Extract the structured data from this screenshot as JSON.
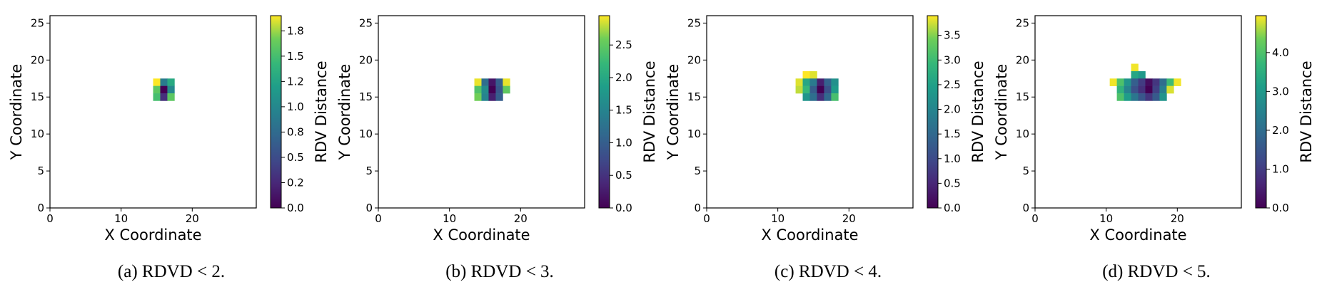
{
  "chart_data": [
    {
      "type": "heatmap",
      "caption": "(a) RDVD < 2.",
      "xlabel": "X Coordinate",
      "ylabel": "Y Coordinate",
      "xticks": [
        0,
        10,
        20
      ],
      "yticks": [
        0,
        5,
        10,
        15,
        20,
        25
      ],
      "xlim": [
        0,
        29
      ],
      "ylim": [
        0,
        26
      ],
      "colorbar_label": "RDV Distance",
      "colorbar_range": [
        0,
        1.9
      ],
      "colorbar_ticks": [
        "0.0",
        "0.2",
        "0.5",
        "0.8",
        "1.0",
        "1.2",
        "1.5",
        "1.8"
      ],
      "colorbar_tick_values": [
        0.0,
        0.25,
        0.5,
        0.75,
        1.0,
        1.25,
        1.5,
        1.75
      ],
      "cells": [
        {
          "x": 15,
          "y": 17,
          "value": 1.9
        },
        {
          "x": 16,
          "y": 17,
          "value": 0.9
        },
        {
          "x": 17,
          "y": 17,
          "value": 1.3
        },
        {
          "x": 15,
          "y": 16,
          "value": 1.6
        },
        {
          "x": 16,
          "y": 16,
          "value": 0.0
        },
        {
          "x": 17,
          "y": 16,
          "value": 1.0
        },
        {
          "x": 15,
          "y": 15,
          "value": 1.5
        },
        {
          "x": 16,
          "y": 15,
          "value": 0.3
        },
        {
          "x": 17,
          "y": 15,
          "value": 1.6
        }
      ]
    },
    {
      "type": "heatmap",
      "caption": "(b) RDVD < 3.",
      "xlabel": "X Coordinate",
      "ylabel": "Y Coordinate",
      "xticks": [
        0,
        10,
        20
      ],
      "yticks": [
        0,
        5,
        10,
        15,
        20,
        25
      ],
      "xlim": [
        0,
        29
      ],
      "ylim": [
        0,
        26
      ],
      "colorbar_label": "RDV Distance",
      "colorbar_range": [
        0,
        2.95
      ],
      "colorbar_ticks": [
        "0.0",
        "0.5",
        "1.0",
        "1.5",
        "2.0",
        "2.5"
      ],
      "colorbar_tick_values": [
        0.0,
        0.5,
        1.0,
        1.5,
        2.0,
        2.5
      ],
      "cells": [
        {
          "x": 14,
          "y": 17,
          "value": 2.9
        },
        {
          "x": 15,
          "y": 17,
          "value": 1.2
        },
        {
          "x": 16,
          "y": 17,
          "value": 0.2
        },
        {
          "x": 17,
          "y": 17,
          "value": 1.0
        },
        {
          "x": 18,
          "y": 17,
          "value": 2.9
        },
        {
          "x": 14,
          "y": 16,
          "value": 2.4
        },
        {
          "x": 15,
          "y": 16,
          "value": 1.6
        },
        {
          "x": 16,
          "y": 16,
          "value": 0.0
        },
        {
          "x": 17,
          "y": 16,
          "value": 0.9
        },
        {
          "x": 18,
          "y": 16,
          "value": 2.5
        },
        {
          "x": 14,
          "y": 15,
          "value": 2.6
        },
        {
          "x": 15,
          "y": 15,
          "value": 1.5
        },
        {
          "x": 16,
          "y": 15,
          "value": 0.3
        },
        {
          "x": 17,
          "y": 15,
          "value": 1.0
        }
      ]
    },
    {
      "type": "heatmap",
      "caption": "(c) RDVD < 4.",
      "xlabel": "X Coordinate",
      "ylabel": "Y Coordinate",
      "xticks": [
        0,
        10,
        20
      ],
      "yticks": [
        0,
        5,
        10,
        15,
        20,
        25
      ],
      "xlim": [
        0,
        29
      ],
      "ylim": [
        0,
        26
      ],
      "colorbar_label": "RDV Distance",
      "colorbar_range": [
        0,
        3.9
      ],
      "colorbar_ticks": [
        "0.0",
        "0.5",
        "1.0",
        "1.5",
        "2.0",
        "2.5",
        "3.0",
        "3.5"
      ],
      "colorbar_tick_values": [
        0.0,
        0.5,
        1.0,
        1.5,
        2.0,
        2.5,
        3.0,
        3.5
      ],
      "cells": [
        {
          "x": 14,
          "y": 18,
          "value": 3.9
        },
        {
          "x": 15,
          "y": 18,
          "value": 3.8
        },
        {
          "x": 13,
          "y": 17,
          "value": 3.8
        },
        {
          "x": 14,
          "y": 17,
          "value": 2.6
        },
        {
          "x": 15,
          "y": 17,
          "value": 1.8
        },
        {
          "x": 16,
          "y": 17,
          "value": 0.4
        },
        {
          "x": 17,
          "y": 17,
          "value": 1.4
        },
        {
          "x": 18,
          "y": 17,
          "value": 2.2
        },
        {
          "x": 13,
          "y": 16,
          "value": 3.7
        },
        {
          "x": 14,
          "y": 16,
          "value": 2.9
        },
        {
          "x": 15,
          "y": 16,
          "value": 1.3
        },
        {
          "x": 16,
          "y": 16,
          "value": 0.0
        },
        {
          "x": 17,
          "y": 16,
          "value": 1.1
        },
        {
          "x": 18,
          "y": 16,
          "value": 2.4
        },
        {
          "x": 14,
          "y": 15,
          "value": 2.3
        },
        {
          "x": 15,
          "y": 15,
          "value": 1.6
        },
        {
          "x": 16,
          "y": 15,
          "value": 0.6
        },
        {
          "x": 17,
          "y": 15,
          "value": 1.5
        },
        {
          "x": 18,
          "y": 15,
          "value": 3.1
        }
      ]
    },
    {
      "type": "heatmap",
      "caption": "(d) RDVD < 5.",
      "xlabel": "X Coordinate",
      "ylabel": "Y Coordinate",
      "xticks": [
        0,
        10,
        20
      ],
      "yticks": [
        0,
        5,
        10,
        15,
        20,
        25
      ],
      "xlim": [
        0,
        29
      ],
      "ylim": [
        0,
        26
      ],
      "colorbar_label": "RDV Distance",
      "colorbar_range": [
        0,
        4.95
      ],
      "colorbar_ticks": [
        "0.0",
        "1.0",
        "2.0",
        "3.0",
        "4.0"
      ],
      "colorbar_tick_values": [
        0.0,
        1.0,
        2.0,
        3.0,
        4.0
      ],
      "cells": [
        {
          "x": 14,
          "y": 19,
          "value": 4.9
        },
        {
          "x": 14,
          "y": 18,
          "value": 3.3
        },
        {
          "x": 15,
          "y": 18,
          "value": 3.0
        },
        {
          "x": 11,
          "y": 17,
          "value": 4.9
        },
        {
          "x": 12,
          "y": 17,
          "value": 4.0
        },
        {
          "x": 13,
          "y": 17,
          "value": 2.9
        },
        {
          "x": 14,
          "y": 17,
          "value": 1.7
        },
        {
          "x": 15,
          "y": 17,
          "value": 1.0
        },
        {
          "x": 16,
          "y": 17,
          "value": 0.2
        },
        {
          "x": 17,
          "y": 17,
          "value": 0.9
        },
        {
          "x": 18,
          "y": 17,
          "value": 2.0
        },
        {
          "x": 19,
          "y": 17,
          "value": 3.8
        },
        {
          "x": 20,
          "y": 17,
          "value": 4.9
        },
        {
          "x": 12,
          "y": 16,
          "value": 3.6
        },
        {
          "x": 13,
          "y": 16,
          "value": 2.5
        },
        {
          "x": 14,
          "y": 16,
          "value": 1.4
        },
        {
          "x": 15,
          "y": 16,
          "value": 0.8
        },
        {
          "x": 16,
          "y": 16,
          "value": 0.0
        },
        {
          "x": 17,
          "y": 16,
          "value": 1.1
        },
        {
          "x": 18,
          "y": 16,
          "value": 2.4
        },
        {
          "x": 19,
          "y": 16,
          "value": 4.8
        },
        {
          "x": 12,
          "y": 15,
          "value": 4.0
        },
        {
          "x": 13,
          "y": 15,
          "value": 3.1
        },
        {
          "x": 14,
          "y": 15,
          "value": 2.2
        },
        {
          "x": 15,
          "y": 15,
          "value": 1.5
        },
        {
          "x": 16,
          "y": 15,
          "value": 0.9
        },
        {
          "x": 17,
          "y": 15,
          "value": 1.6
        },
        {
          "x": 18,
          "y": 15,
          "value": 2.9
        }
      ]
    }
  ]
}
